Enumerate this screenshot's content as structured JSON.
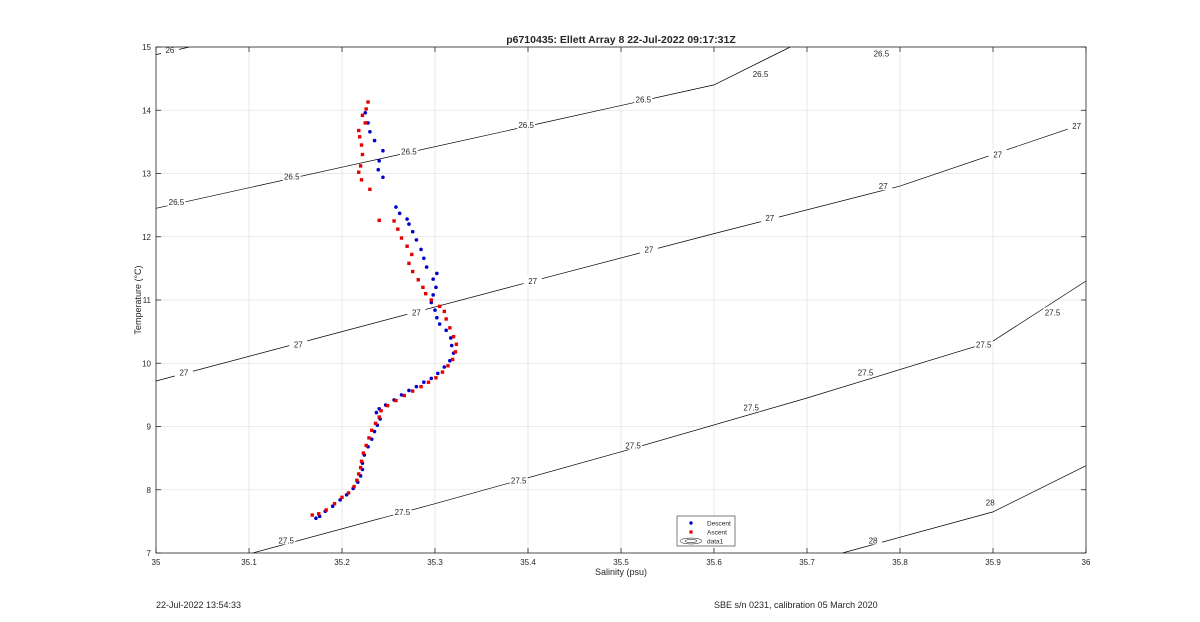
{
  "footer": {
    "timestamp": "22-Jul-2022 13:54:33",
    "sensor": "SBE s/n 0231, calibration 05 March 2020"
  },
  "chart_data": {
    "type": "scatter",
    "title": "p6710435: Ellett Array 8 22-Jul-2022 09:17:31Z",
    "xlabel": "Salinity (psu)",
    "ylabel": "Temperature (°C)",
    "xlim": [
      35,
      36
    ],
    "ylim": [
      7,
      15
    ],
    "xticks": [
      "35",
      "35.1",
      "35.2",
      "35.3",
      "35.4",
      "35.5",
      "35.6",
      "35.7",
      "35.8",
      "35.9",
      "36"
    ],
    "yticks": [
      "7",
      "8",
      "9",
      "10",
      "11",
      "12",
      "13",
      "14",
      "15"
    ],
    "grid": true,
    "legend_position": "bottom-center",
    "contour_color": "#000000",
    "contours": [
      {
        "level": "26",
        "points": [
          [
            35.0,
            14.88
          ],
          [
            35.036,
            15.0
          ]
        ],
        "labels": [
          [
            35.015,
            14.95
          ]
        ]
      },
      {
        "level": "26.5",
        "points": [
          [
            35.0,
            12.45
          ],
          [
            35.2,
            13.1
          ],
          [
            35.4,
            13.75
          ],
          [
            35.6,
            14.4
          ],
          [
            35.682,
            15.0
          ]
        ],
        "labels": [
          [
            35.022,
            12.55
          ],
          [
            35.146,
            12.95
          ],
          [
            35.272,
            13.35
          ],
          [
            35.398,
            13.77
          ],
          [
            35.524,
            14.17
          ],
          [
            35.65,
            14.57
          ],
          [
            35.78,
            14.9
          ]
        ]
      },
      {
        "level": "27",
        "points": [
          [
            35.0,
            9.72
          ],
          [
            35.2,
            10.5
          ],
          [
            35.4,
            11.28
          ],
          [
            35.6,
            12.05
          ],
          [
            35.8,
            12.8
          ],
          [
            36.0,
            13.8
          ]
        ],
        "labels": [
          [
            35.03,
            9.85
          ],
          [
            35.153,
            10.3
          ],
          [
            35.28,
            10.8
          ],
          [
            35.405,
            11.3
          ],
          [
            35.53,
            11.8
          ],
          [
            35.66,
            12.3
          ],
          [
            35.782,
            12.8
          ],
          [
            35.905,
            13.3
          ],
          [
            35.99,
            13.75
          ]
        ]
      },
      {
        "level": "27.5",
        "points": [
          [
            35.104,
            7.0
          ],
          [
            35.3,
            7.78
          ],
          [
            35.5,
            8.6
          ],
          [
            35.7,
            9.45
          ],
          [
            35.9,
            10.35
          ],
          [
            36.0,
            11.3
          ]
        ],
        "labels": [
          [
            35.14,
            7.2
          ],
          [
            35.265,
            7.65
          ],
          [
            35.39,
            8.15
          ],
          [
            35.513,
            8.7
          ],
          [
            35.64,
            9.3
          ],
          [
            35.763,
            9.85
          ],
          [
            35.89,
            10.3
          ],
          [
            35.964,
            10.8
          ]
        ]
      },
      {
        "level": "28",
        "points": [
          [
            35.738,
            7.0
          ],
          [
            35.9,
            7.65
          ],
          [
            36.0,
            8.38
          ]
        ],
        "labels": [
          [
            35.771,
            7.2
          ],
          [
            35.897,
            7.8
          ]
        ]
      }
    ],
    "series": [
      {
        "name": "Descent",
        "color": "#0000cd",
        "marker": "dot",
        "points": [
          [
            35.172,
            7.55
          ],
          [
            35.176,
            7.58
          ],
          [
            35.182,
            7.66
          ],
          [
            35.19,
            7.74
          ],
          [
            35.198,
            7.84
          ],
          [
            35.205,
            7.92
          ],
          [
            35.212,
            8.02
          ],
          [
            35.217,
            8.12
          ],
          [
            35.22,
            8.22
          ],
          [
            35.222,
            8.32
          ],
          [
            35.222,
            8.42
          ],
          [
            35.224,
            8.55
          ],
          [
            35.228,
            8.68
          ],
          [
            35.232,
            8.8
          ],
          [
            35.235,
            8.92
          ],
          [
            35.238,
            9.02
          ],
          [
            35.241,
            9.12
          ],
          [
            35.237,
            9.22
          ],
          [
            35.24,
            9.28
          ],
          [
            35.247,
            9.34
          ],
          [
            35.256,
            9.42
          ],
          [
            35.264,
            9.5
          ],
          [
            35.272,
            9.57
          ],
          [
            35.28,
            9.63
          ],
          [
            35.288,
            9.7
          ],
          [
            35.296,
            9.76
          ],
          [
            35.303,
            9.84
          ],
          [
            35.31,
            9.94
          ],
          [
            35.316,
            10.04
          ],
          [
            35.32,
            10.16
          ],
          [
            35.318,
            10.28
          ],
          [
            35.317,
            10.4
          ],
          [
            35.312,
            10.52
          ],
          [
            35.305,
            10.62
          ],
          [
            35.302,
            10.72
          ],
          [
            35.3,
            10.84
          ],
          [
            35.296,
            10.96
          ],
          [
            35.298,
            11.08
          ],
          [
            35.301,
            11.2
          ],
          [
            35.298,
            11.33
          ],
          [
            35.302,
            11.42
          ],
          [
            35.291,
            11.52
          ],
          [
            35.288,
            11.66
          ],
          [
            35.285,
            11.8
          ],
          [
            35.28,
            11.95
          ],
          [
            35.276,
            12.08
          ],
          [
            35.272,
            12.2
          ],
          [
            35.27,
            12.28
          ],
          [
            35.262,
            12.37
          ],
          [
            35.258,
            12.47
          ],
          [
            35.244,
            12.94
          ],
          [
            35.239,
            13.06
          ],
          [
            35.24,
            13.2
          ],
          [
            35.244,
            13.36
          ],
          [
            35.235,
            13.52
          ],
          [
            35.23,
            13.66
          ],
          [
            35.228,
            13.8
          ],
          [
            35.225,
            13.96
          ]
        ]
      },
      {
        "name": "Ascent",
        "color": "#e60000",
        "marker": "square",
        "points": [
          [
            35.168,
            7.6
          ],
          [
            35.175,
            7.62
          ],
          [
            35.183,
            7.68
          ],
          [
            35.192,
            7.78
          ],
          [
            35.2,
            7.88
          ],
          [
            35.207,
            7.95
          ],
          [
            35.213,
            8.05
          ],
          [
            35.216,
            8.15
          ],
          [
            35.218,
            8.25
          ],
          [
            35.22,
            8.35
          ],
          [
            35.221,
            8.45
          ],
          [
            35.223,
            8.58
          ],
          [
            35.226,
            8.7
          ],
          [
            35.229,
            8.82
          ],
          [
            35.232,
            8.94
          ],
          [
            35.236,
            9.05
          ],
          [
            35.24,
            9.15
          ],
          [
            35.242,
            9.25
          ],
          [
            35.249,
            9.33
          ],
          [
            35.258,
            9.41
          ],
          [
            35.267,
            9.49
          ],
          [
            35.276,
            9.56
          ],
          [
            35.285,
            9.63
          ],
          [
            35.293,
            9.7
          ],
          [
            35.301,
            9.77
          ],
          [
            35.308,
            9.86
          ],
          [
            35.314,
            9.96
          ],
          [
            35.319,
            10.06
          ],
          [
            35.322,
            10.18
          ],
          [
            35.323,
            10.3
          ],
          [
            35.32,
            10.42
          ],
          [
            35.316,
            10.56
          ],
          [
            35.312,
            10.7
          ],
          [
            35.31,
            10.82
          ],
          [
            35.305,
            10.9
          ],
          [
            35.296,
            11.0
          ],
          [
            35.29,
            11.1
          ],
          [
            35.287,
            11.2
          ],
          [
            35.282,
            11.32
          ],
          [
            35.276,
            11.45
          ],
          [
            35.272,
            11.58
          ],
          [
            35.275,
            11.72
          ],
          [
            35.27,
            11.85
          ],
          [
            35.264,
            11.98
          ],
          [
            35.26,
            12.12
          ],
          [
            35.256,
            12.25
          ],
          [
            35.24,
            12.26
          ],
          [
            35.23,
            12.75
          ],
          [
            35.221,
            12.9
          ],
          [
            35.218,
            13.02
          ],
          [
            35.22,
            13.12
          ],
          [
            35.222,
            13.3
          ],
          [
            35.221,
            13.45
          ],
          [
            35.219,
            13.58
          ],
          [
            35.218,
            13.68
          ],
          [
            35.225,
            13.8
          ],
          [
            35.222,
            13.92
          ],
          [
            35.226,
            14.02
          ],
          [
            35.228,
            14.13
          ]
        ]
      },
      {
        "name": "data1",
        "color": "#000000",
        "marker": "contour",
        "points": []
      }
    ]
  }
}
